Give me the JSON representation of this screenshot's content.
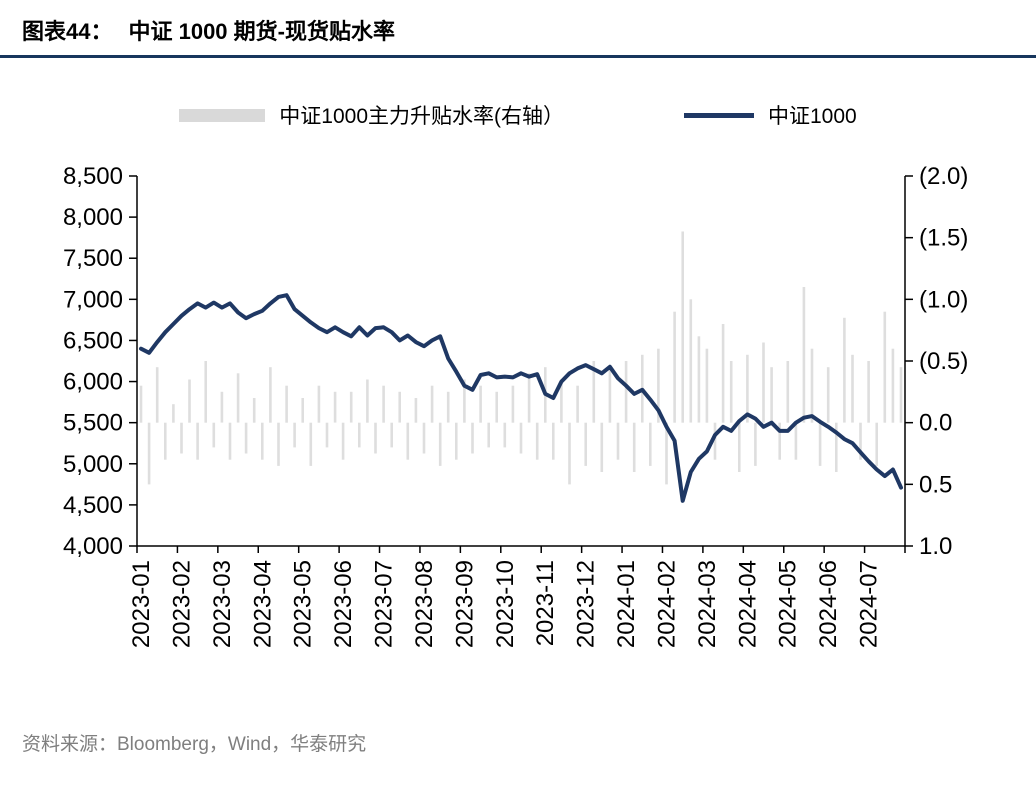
{
  "header": {
    "label": "图表44：",
    "title": "中证 1000 期货-现货贴水率"
  },
  "footer": {
    "source": "资料来源：Bloomberg，Wind，华泰研究"
  },
  "colors": {
    "accent": "#1F3864",
    "bar": "#DEDEDE",
    "divider": "#17365D",
    "muted_text": "#7F7F7F",
    "axis": "#000000"
  },
  "chart_data": {
    "type": "line+bar",
    "title": "中证 1000 期货-现货贴水率",
    "categories": [
      "2023-01",
      "2023-02",
      "2023-03",
      "2023-04",
      "2023-05",
      "2023-06",
      "2023-07",
      "2023-08",
      "2023-09",
      "2023-10",
      "2023-11",
      "2023-12",
      "2024-01",
      "2024-02",
      "2024-03",
      "2024-04",
      "2024-05",
      "2024-06",
      "2024-07"
    ],
    "points_per_month": 5,
    "left_axis": {
      "min": 4000,
      "max": 8500,
      "step": 500,
      "values": [
        8500,
        8000,
        7500,
        7000,
        6500,
        6000,
        5500,
        5000,
        4500,
        4000
      ],
      "tick_labels": [
        "8,500",
        "8,000",
        "7,500",
        "7,000",
        "6,500",
        "6,000",
        "5,500",
        "5,000",
        "4,500",
        "4,000"
      ]
    },
    "right_axis": {
      "top": -2.0,
      "bottom": 1.0,
      "step": 0.5,
      "inverted": true,
      "values": [
        -2.0,
        -1.5,
        -1.0,
        -0.5,
        0.0,
        0.5,
        1.0
      ],
      "tick_labels": [
        "(2.0)",
        "(1.5)",
        "(1.0)",
        "(0.5)",
        "0.0",
        "0.5",
        "1.0"
      ]
    },
    "legend_position": "top",
    "grid": false,
    "series": [
      {
        "name": "中证1000主力升贴水率(右轴）",
        "type": "bar",
        "axis": "right",
        "color": "#DEDEDE",
        "values": [
          -0.3,
          0.5,
          -0.45,
          0.3,
          -0.15,
          0.25,
          -0.35,
          0.3,
          -0.5,
          0.2,
          -0.25,
          0.3,
          -0.4,
          0.25,
          -0.2,
          0.3,
          -0.45,
          0.35,
          -0.3,
          0.2,
          -0.2,
          0.35,
          -0.3,
          0.2,
          -0.25,
          0.3,
          -0.25,
          0.2,
          -0.35,
          0.25,
          -0.3,
          0.2,
          -0.25,
          0.3,
          -0.2,
          0.25,
          -0.3,
          0.35,
          -0.25,
          0.3,
          -0.35,
          0.25,
          -0.3,
          0.2,
          -0.25,
          0.2,
          -0.3,
          0.25,
          -0.4,
          0.3,
          -0.45,
          0.3,
          -0.35,
          0.5,
          -0.3,
          0.35,
          -0.5,
          0.4,
          -0.45,
          0.3,
          -0.5,
          0.4,
          -0.55,
          0.35,
          -0.6,
          0.5,
          -0.9,
          -1.55,
          -1.0,
          -0.7,
          -0.6,
          0.3,
          -0.8,
          -0.5,
          0.4,
          -0.55,
          0.35,
          -0.65,
          -0.45,
          0.3,
          -0.5,
          0.3,
          -1.1,
          -0.6,
          0.35,
          -0.45,
          0.4,
          -0.85,
          -0.55,
          0.3,
          -0.5,
          0.35,
          -0.9,
          -0.6,
          -0.45
        ]
      },
      {
        "name": "中证1000",
        "type": "line",
        "axis": "left",
        "color": "#1F3864",
        "values": [
          6400,
          6350,
          6480,
          6600,
          6700,
          6800,
          6880,
          6950,
          6900,
          6960,
          6900,
          6950,
          6840,
          6770,
          6820,
          6860,
          6950,
          7030,
          7050,
          6880,
          6800,
          6720,
          6650,
          6600,
          6660,
          6600,
          6550,
          6660,
          6560,
          6650,
          6660,
          6600,
          6500,
          6560,
          6480,
          6430,
          6500,
          6550,
          6280,
          6120,
          5950,
          5900,
          6080,
          6100,
          6050,
          6060,
          6050,
          6100,
          6060,
          6090,
          5850,
          5800,
          6000,
          6100,
          6160,
          6200,
          6150,
          6100,
          6180,
          6040,
          5950,
          5850,
          5900,
          5780,
          5650,
          5450,
          5280,
          4550,
          4900,
          5060,
          5150,
          5350,
          5450,
          5400,
          5520,
          5600,
          5550,
          5450,
          5500,
          5400,
          5400,
          5500,
          5560,
          5580,
          5510,
          5450,
          5380,
          5300,
          5250,
          5140,
          5030,
          4930,
          4850,
          4930,
          4710
        ]
      }
    ]
  }
}
